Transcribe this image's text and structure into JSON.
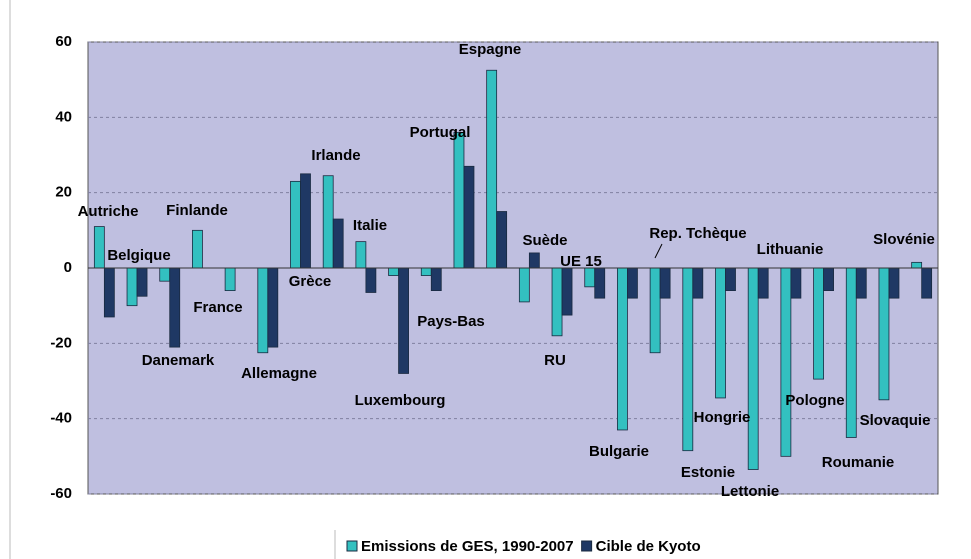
{
  "chart_data": {
    "type": "bar",
    "categories": [
      "Autriche",
      "Belgique",
      "Danemark",
      "Finlande",
      "France",
      "Allemagne",
      "Grèce",
      "Irlande",
      "Italie",
      "Luxembourg",
      "Pays-Bas",
      "Portugal",
      "Espagne",
      "Suède",
      "RU",
      "UE 15",
      "Bulgarie",
      "Rep. Tchèque",
      "Estonie",
      "Hongrie",
      "Lettonie",
      "Lithuanie",
      "Pologne",
      "Roumanie",
      "Slovaquie",
      "Slovénie"
    ],
    "series": [
      {
        "name": "Emissions de GES, 1990-2007",
        "color": "#33c0c0",
        "values": [
          11,
          -10,
          -3.5,
          10,
          -6,
          -22.5,
          23,
          24.5,
          7,
          -2,
          -2,
          36,
          52.5,
          -9,
          -18,
          -5,
          -43,
          -22.5,
          -48.5,
          -34.5,
          -53.5,
          -50,
          -29.5,
          -45,
          -35,
          1.5
        ]
      },
      {
        "name": "Cible de Kyoto",
        "color": "#1f3864",
        "values": [
          -13,
          -7.5,
          -21,
          0,
          0,
          -21,
          25,
          13,
          -6.5,
          -28,
          -6,
          27,
          15,
          4,
          -12.5,
          -8,
          -8,
          -8,
          -8,
          -6,
          -8,
          -8,
          -6,
          -8,
          -8,
          -8
        ]
      }
    ],
    "ylim": [
      -60,
      60
    ],
    "yticks": [
      -60,
      -40,
      -20,
      0,
      20,
      40,
      60
    ],
    "grid": true,
    "legend": "bottom"
  }
}
